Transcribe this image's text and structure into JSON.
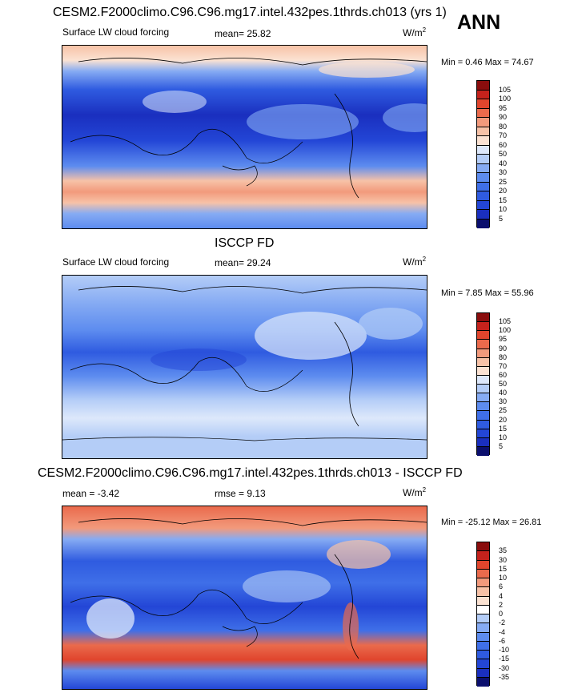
{
  "figure": {
    "season": "ANN",
    "unit_base": "W/m",
    "unit_exp": "2"
  },
  "panels": [
    {
      "title": "CESM2.F2000climo.C96.C96.mg17.intel.432pes.1thrds.ch013 (yrs 1)",
      "variable": "Surface LW cloud forcing",
      "stat1": "mean=  25.82",
      "stat2": "",
      "minmax": "Min =   0.46 Max =  74.67"
    },
    {
      "title": "ISCCP FD",
      "variable": "Surface LW cloud forcing",
      "stat1": "mean=  29.24",
      "stat2": "",
      "minmax": "Min =   7.85 Max =  55.96"
    },
    {
      "title": "CESM2.F2000climo.C96.C96.mg17.intel.432pes.1thrds.ch013 - ISCCP FD",
      "variable": "",
      "stat1": "mean =  -3.42",
      "stat2": "rmse =   9.13",
      "minmax": "Min = -25.12 Max =  26.81"
    }
  ],
  "chart_data": [
    {
      "type": "heatmap",
      "title": "CESM2.F2000climo.C96.C96.mg17.intel.432pes.1thrds.ch013 (yrs 1)",
      "variable": "Surface LW cloud forcing",
      "units": "W/m2",
      "mean": 25.82,
      "min": 0.46,
      "max": 74.67,
      "levels": [
        5,
        10,
        15,
        20,
        25,
        30,
        40,
        50,
        60,
        70,
        80,
        90,
        95,
        100,
        105
      ],
      "colors": [
        "#0b0f6e",
        "#1a2fbf",
        "#2346d6",
        "#2f5be0",
        "#3f6fe8",
        "#5d8cef",
        "#86abf3",
        "#b4cdf7",
        "#dde8fb",
        "#fbe2d2",
        "#f7c2a7",
        "#f29a7c",
        "#ea6a4c",
        "#e0452d",
        "#c4221c",
        "#8a0d0d"
      ]
    },
    {
      "type": "heatmap",
      "title": "ISCCP FD",
      "variable": "Surface LW cloud forcing",
      "units": "W/m2",
      "mean": 29.24,
      "min": 7.85,
      "max": 55.96,
      "levels": [
        5,
        10,
        15,
        20,
        25,
        30,
        40,
        50,
        60,
        70,
        80,
        90,
        95,
        100,
        105
      ],
      "colors": [
        "#0b0f6e",
        "#1a2fbf",
        "#2346d6",
        "#2f5be0",
        "#3f6fe8",
        "#5d8cef",
        "#86abf3",
        "#b4cdf7",
        "#dde8fb",
        "#fbe2d2",
        "#f7c2a7",
        "#f29a7c",
        "#ea6a4c",
        "#e0452d",
        "#c4221c",
        "#8a0d0d"
      ]
    },
    {
      "type": "heatmap",
      "title": "CESM2.F2000climo.C96.C96.mg17.intel.432pes.1thrds.ch013 - ISCCP FD",
      "units": "W/m2",
      "mean": -3.42,
      "rmse": 9.13,
      "min": -25.12,
      "max": 26.81,
      "levels": [
        -35,
        -30,
        -15,
        -10,
        -6,
        -4,
        -2,
        0,
        2,
        4,
        6,
        10,
        15,
        30,
        35
      ],
      "colors": [
        "#0b0f6e",
        "#1a2fbf",
        "#2346d6",
        "#2f5be0",
        "#3f6fe8",
        "#5d8cef",
        "#86abf3",
        "#b4cdf7",
        "#ffffff",
        "#fbe2d2",
        "#f7c2a7",
        "#f29a7c",
        "#ea6a4c",
        "#e0452d",
        "#c4221c",
        "#8a0d0d"
      ]
    }
  ]
}
